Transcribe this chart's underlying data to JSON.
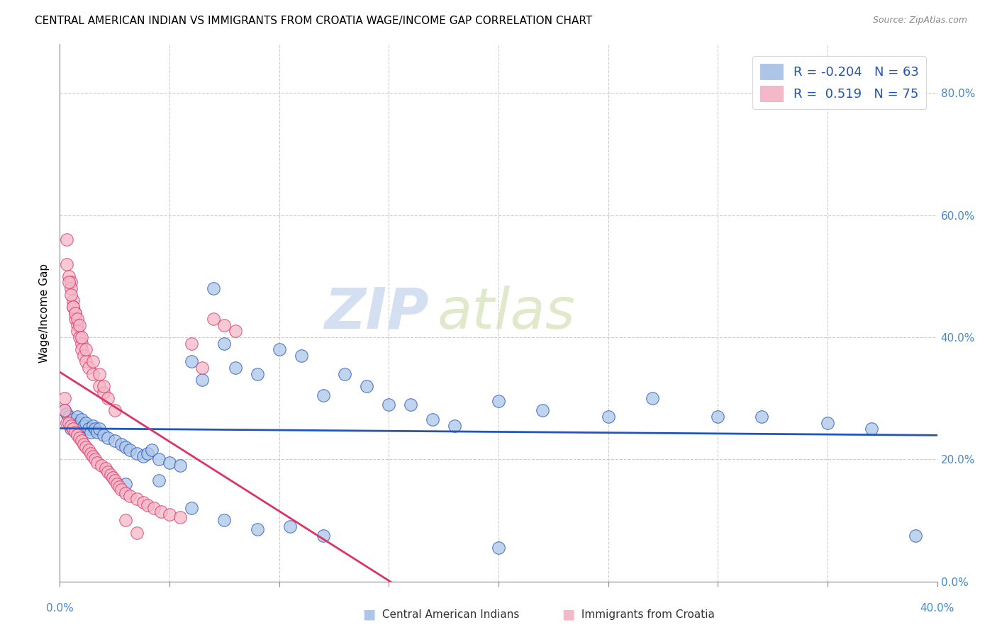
{
  "title": "CENTRAL AMERICAN INDIAN VS IMMIGRANTS FROM CROATIA WAGE/INCOME GAP CORRELATION CHART",
  "source": "Source: ZipAtlas.com",
  "ylabel": "Wage/Income Gap",
  "right_yticks": [
    0.0,
    0.2,
    0.4,
    0.6,
    0.8
  ],
  "right_yticklabels": [
    "0.0%",
    "20.0%",
    "40.0%",
    "60.0%",
    "80.0%"
  ],
  "xmin": 0.0,
  "xmax": 0.4,
  "ymin": 0.0,
  "ymax": 0.88,
  "legend_R_blue": "-0.204",
  "legend_N_blue": "63",
  "legend_R_pink": "0.519",
  "legend_N_pink": "75",
  "blue_color": "#adc6e8",
  "pink_color": "#f4b8c8",
  "blue_line_color": "#2255bb",
  "pink_line_color": "#dd3366",
  "watermark_zip": "ZIP",
  "watermark_atlas": "atlas",
  "blue_scatter_x": [
    0.002,
    0.003,
    0.004,
    0.005,
    0.005,
    0.006,
    0.007,
    0.008,
    0.009,
    0.01,
    0.011,
    0.012,
    0.013,
    0.014,
    0.015,
    0.016,
    0.017,
    0.018,
    0.02,
    0.022,
    0.025,
    0.028,
    0.03,
    0.032,
    0.035,
    0.038,
    0.04,
    0.042,
    0.045,
    0.05,
    0.055,
    0.06,
    0.065,
    0.07,
    0.075,
    0.08,
    0.09,
    0.1,
    0.11,
    0.12,
    0.13,
    0.14,
    0.15,
    0.16,
    0.17,
    0.18,
    0.2,
    0.22,
    0.25,
    0.27,
    0.3,
    0.32,
    0.35,
    0.37,
    0.39,
    0.03,
    0.045,
    0.06,
    0.075,
    0.09,
    0.105,
    0.12,
    0.2
  ],
  "blue_scatter_y": [
    0.28,
    0.275,
    0.27,
    0.26,
    0.25,
    0.265,
    0.255,
    0.27,
    0.26,
    0.265,
    0.255,
    0.26,
    0.25,
    0.245,
    0.255,
    0.25,
    0.245,
    0.25,
    0.24,
    0.235,
    0.23,
    0.225,
    0.22,
    0.215,
    0.21,
    0.205,
    0.21,
    0.215,
    0.2,
    0.195,
    0.19,
    0.36,
    0.33,
    0.48,
    0.39,
    0.35,
    0.34,
    0.38,
    0.37,
    0.305,
    0.34,
    0.32,
    0.29,
    0.29,
    0.265,
    0.255,
    0.295,
    0.28,
    0.27,
    0.3,
    0.27,
    0.27,
    0.26,
    0.25,
    0.075,
    0.16,
    0.165,
    0.12,
    0.1,
    0.085,
    0.09,
    0.075,
    0.055
  ],
  "pink_scatter_x": [
    0.002,
    0.002,
    0.003,
    0.003,
    0.004,
    0.004,
    0.005,
    0.005,
    0.005,
    0.006,
    0.006,
    0.006,
    0.007,
    0.007,
    0.007,
    0.008,
    0.008,
    0.008,
    0.009,
    0.009,
    0.01,
    0.01,
    0.01,
    0.011,
    0.011,
    0.012,
    0.012,
    0.013,
    0.013,
    0.014,
    0.015,
    0.015,
    0.016,
    0.017,
    0.018,
    0.019,
    0.02,
    0.021,
    0.022,
    0.023,
    0.024,
    0.025,
    0.026,
    0.027,
    0.028,
    0.03,
    0.032,
    0.035,
    0.038,
    0.04,
    0.043,
    0.046,
    0.05,
    0.055,
    0.06,
    0.065,
    0.07,
    0.075,
    0.08,
    0.003,
    0.004,
    0.005,
    0.006,
    0.007,
    0.008,
    0.009,
    0.01,
    0.012,
    0.015,
    0.018,
    0.02,
    0.022,
    0.025,
    0.03,
    0.035
  ],
  "pink_scatter_y": [
    0.3,
    0.28,
    0.52,
    0.26,
    0.5,
    0.26,
    0.49,
    0.48,
    0.255,
    0.46,
    0.45,
    0.25,
    0.44,
    0.43,
    0.245,
    0.42,
    0.41,
    0.24,
    0.4,
    0.235,
    0.39,
    0.38,
    0.23,
    0.37,
    0.225,
    0.36,
    0.22,
    0.35,
    0.215,
    0.21,
    0.34,
    0.205,
    0.2,
    0.195,
    0.32,
    0.19,
    0.31,
    0.185,
    0.18,
    0.175,
    0.17,
    0.165,
    0.16,
    0.155,
    0.15,
    0.145,
    0.14,
    0.135,
    0.13,
    0.125,
    0.12,
    0.115,
    0.11,
    0.105,
    0.39,
    0.35,
    0.43,
    0.42,
    0.41,
    0.56,
    0.49,
    0.47,
    0.45,
    0.44,
    0.43,
    0.42,
    0.4,
    0.38,
    0.36,
    0.34,
    0.32,
    0.3,
    0.28,
    0.1,
    0.08
  ]
}
